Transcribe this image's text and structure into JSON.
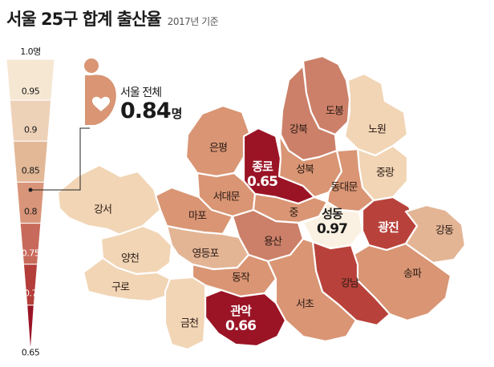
{
  "title": "서울 25구 합계 출산율",
  "subtitle": "2017년 기준",
  "scale": {
    "ticks": [
      "1.0명",
      "0.95",
      "0.9",
      "0.85",
      "0.8",
      "0.75",
      "0.7",
      "0.65"
    ],
    "colors": [
      "#f6e7d3",
      "#eed2b8",
      "#e2b897",
      "#d9957a",
      "#c86a5b",
      "#b33e3a",
      "#9a1425"
    ]
  },
  "callout": {
    "label": "서울 전체",
    "value": "0.84",
    "unit": "명",
    "marker_value": 0.84,
    "icon": "mother-with-heart-icon",
    "color": "#d9957a"
  },
  "districts": [
    {
      "id": "dobong",
      "name": "도봉",
      "rate_band": "0.75-0.8",
      "color": "#cc8069"
    },
    {
      "id": "nowon",
      "name": "노원",
      "rate_band": "0.9-0.95",
      "color": "#f1d5b5"
    },
    {
      "id": "gangbuk",
      "name": "강북",
      "rate_band": "0.75-0.8",
      "color": "#cc8069"
    },
    {
      "id": "eunpyeong",
      "name": "은평",
      "rate_band": "0.8-0.85",
      "color": "#d99574"
    },
    {
      "id": "jongno",
      "name": "종로",
      "value": "0.65",
      "color": "#9a1425"
    },
    {
      "id": "seongbuk",
      "name": "성북",
      "rate_band": "0.8-0.85",
      "color": "#d99574"
    },
    {
      "id": "jungnang",
      "name": "중랑",
      "rate_band": "0.9-0.95",
      "color": "#f1d5b5"
    },
    {
      "id": "seodaemun",
      "name": "서대문",
      "rate_band": "0.8-0.85",
      "color": "#d99574"
    },
    {
      "id": "dongdaemun",
      "name": "동대문",
      "rate_band": "0.8-0.85",
      "color": "#d99574"
    },
    {
      "id": "gangseo",
      "name": "강서",
      "rate_band": "0.9-0.95",
      "color": "#f1d5b5"
    },
    {
      "id": "mapo",
      "name": "마포",
      "rate_band": "0.8-0.85",
      "color": "#d99574"
    },
    {
      "id": "jung",
      "name": "중",
      "rate_band": "0.8-0.85",
      "color": "#d99574"
    },
    {
      "id": "seongdong",
      "name": "성동",
      "value": "0.97",
      "color": "#fbf1e2"
    },
    {
      "id": "gwangjin",
      "name": "광진",
      "rate_band": "0.7-0.75",
      "color": "#b8423b"
    },
    {
      "id": "gangdong",
      "name": "강동",
      "rate_band": "0.85-0.9",
      "color": "#e3b595"
    },
    {
      "id": "yangcheon",
      "name": "양천",
      "rate_band": "0.9-0.95",
      "color": "#f1d5b5"
    },
    {
      "id": "yongsan",
      "name": "용산",
      "rate_band": "0.75-0.8",
      "color": "#cc8069"
    },
    {
      "id": "yeongdeungpo",
      "name": "영등포",
      "rate_band": "0.85-0.9",
      "color": "#e3b595"
    },
    {
      "id": "guro",
      "name": "구로",
      "rate_band": "0.9-0.95",
      "color": "#f1d5b5"
    },
    {
      "id": "dongjak",
      "name": "동작",
      "rate_band": "0.8-0.85",
      "color": "#d99574"
    },
    {
      "id": "songpa",
      "name": "송파",
      "rate_band": "0.8-0.85",
      "color": "#d99574"
    },
    {
      "id": "gangnam",
      "name": "강남",
      "rate_band": "0.7-0.75",
      "color": "#b8423b"
    },
    {
      "id": "seocho",
      "name": "서초",
      "rate_band": "0.8-0.85",
      "color": "#d99574"
    },
    {
      "id": "gwanak",
      "name": "관악",
      "value": "0.66",
      "color": "#9a1425"
    },
    {
      "id": "geumcheon",
      "name": "금천",
      "rate_band": "0.9-0.95",
      "color": "#f1d5b5"
    }
  ]
}
